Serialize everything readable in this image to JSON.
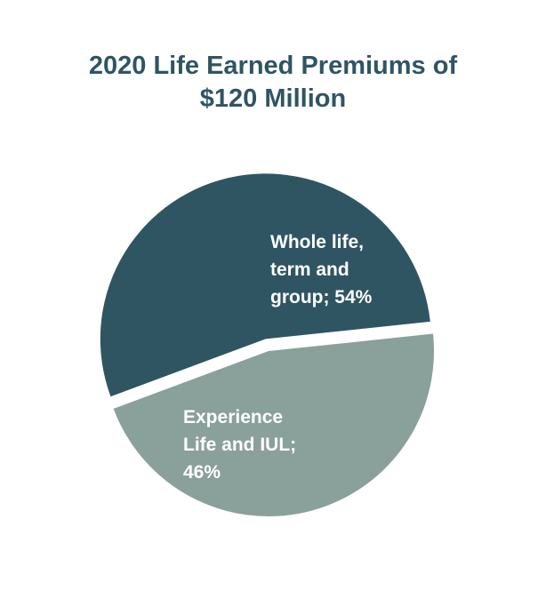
{
  "chart_data": {
    "type": "pie",
    "title": [
      "2020 Life Earned Premiums of",
      "$120 Million"
    ],
    "slices": [
      {
        "name": "Whole life, term and group",
        "value": 54,
        "label_lines": [
          "Whole life,",
          "term and",
          "group; 54%"
        ],
        "color": "#2f5563",
        "exploded": true
      },
      {
        "name": "Experience Life and IUL",
        "value": 46,
        "label_lines": [
          "Experience",
          "Life and IUL;",
          "46%"
        ],
        "color": "#8aa09b",
        "exploded": false
      }
    ],
    "legend": "none"
  }
}
